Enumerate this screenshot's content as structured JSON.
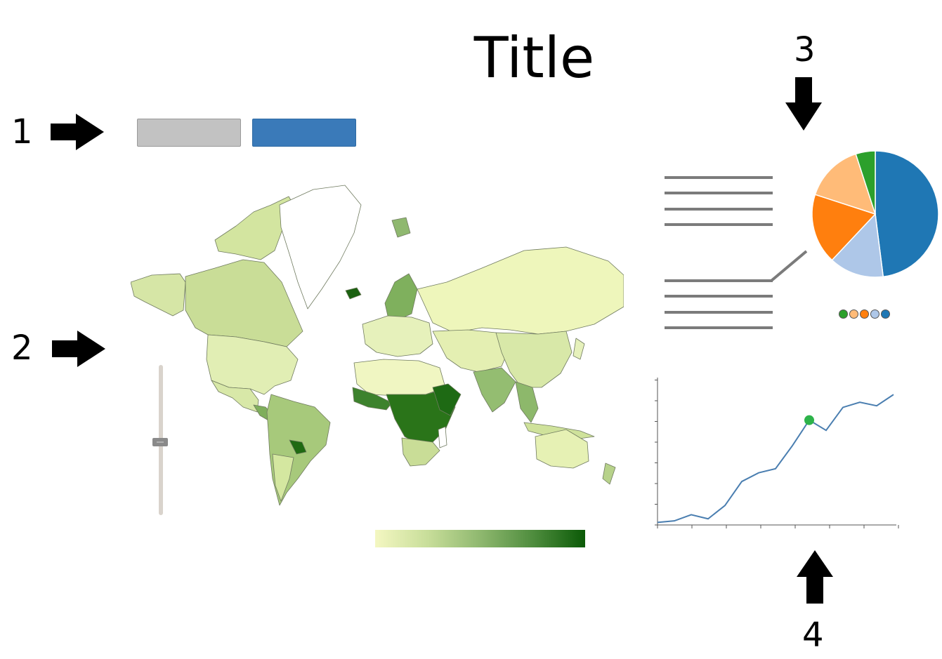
{
  "title": "Title",
  "callouts": [
    {
      "label": "1"
    },
    {
      "label": "2"
    },
    {
      "label": "3"
    },
    {
      "label": "4"
    }
  ],
  "buttons": [
    {
      "state": "inactive",
      "color": "#c2c2c2"
    },
    {
      "state": "active",
      "color": "#3a7ab9"
    }
  ],
  "map": {
    "colorscale": [
      "#f4f7c2",
      "#0b5a07"
    ],
    "slider_level": 0.52
  },
  "pie": {
    "slices": [
      {
        "value": 48,
        "color": "#1f77b4"
      },
      {
        "value": 14,
        "color": "#aec7e8"
      },
      {
        "value": 18,
        "color": "#ff7f0e"
      },
      {
        "value": 15,
        "color": "#ffbb78"
      },
      {
        "value": 5,
        "color": "#2ca02c"
      }
    ],
    "legend_dots": [
      "#2ca02c",
      "#ffbb78",
      "#ff7f0e",
      "#aec7e8",
      "#1f77b4"
    ]
  },
  "chart_data": {
    "type": "line",
    "x": [
      0,
      1,
      2,
      3,
      4,
      5,
      6,
      7,
      8,
      9,
      10,
      11,
      12,
      13,
      14
    ],
    "series": [
      {
        "values": [
          0.5,
          0.8,
          2.0,
          1.2,
          3.8,
          8.5,
          10.2,
          11.0,
          15.5,
          20.5,
          18.5,
          23.0,
          24.0,
          23.3,
          25.5
        ],
        "color": "#4a7eb0"
      }
    ],
    "highlight": {
      "index": 9,
      "color": "#2db34a"
    },
    "ylim": [
      0,
      28
    ],
    "grid": false
  }
}
